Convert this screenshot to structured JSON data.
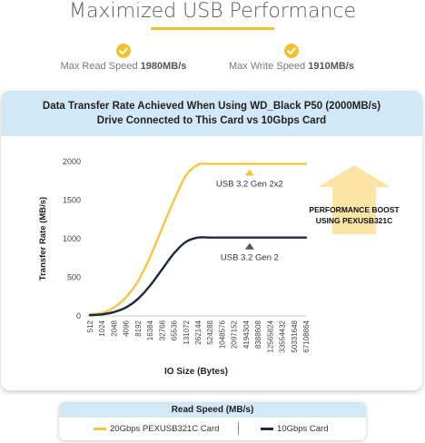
{
  "header": {
    "title": "Maximized USB Performance",
    "read_label": "Max Read Speed",
    "read_value": "1980MB/s",
    "write_label": "Max Write Speed",
    "write_value": "1910MB/s"
  },
  "colors": {
    "accent": "#f0c030",
    "series_a": "#f5c542",
    "series_b": "#1c2a3e",
    "header_bg": "#d2e8f5",
    "boost_arrow": "#fbe4a4"
  },
  "card": {
    "title_line1": "Data Transfer Rate Achieved When Using WD_Black P50 (2000MB/s)",
    "title_line2": "Drive Connected to This Card vs 10Gbps Card"
  },
  "boost": {
    "line1": "PERFORMANCE BOOST",
    "line2": "USING PEXUSB321C"
  },
  "legend": {
    "title": "Read Speed (MB/s)",
    "item_a": "20Gbps PEXUSB321C Card",
    "item_b": "10Gbps Card"
  },
  "chart_data": {
    "type": "line",
    "xlabel": "IO Size (Bytes)",
    "ylabel": "Transfer Rate (MB/s)",
    "categories": [
      "512",
      "1024",
      "2048",
      "4096",
      "8192",
      "16384",
      "32768",
      "65536",
      "131072",
      "262144",
      "524288",
      "1048576",
      "2097152",
      "4194304",
      "8388608",
      "12565824",
      "33554432",
      "50331648",
      "67108864"
    ],
    "ylim": [
      0,
      2000
    ],
    "yticks": [
      0,
      500,
      1000,
      1500,
      2000
    ],
    "grid": false,
    "series": [
      {
        "name": "20Gbps PEXUSB321C Card",
        "label": "USB 3.2 Gen 2x2",
        "values": [
          20,
          40,
          110,
          240,
          450,
          760,
          1130,
          1500,
          1820,
          1960,
          1970,
          1970,
          1970,
          1970,
          1970,
          1970,
          1970,
          1970,
          1970
        ]
      },
      {
        "name": "10Gbps Card",
        "label": "USB 3.2 Gen 2",
        "values": [
          10,
          20,
          50,
          110,
          220,
          390,
          600,
          810,
          960,
          1015,
          1015,
          1015,
          1015,
          1015,
          1015,
          1015,
          1015,
          1015,
          1015
        ]
      }
    ]
  }
}
